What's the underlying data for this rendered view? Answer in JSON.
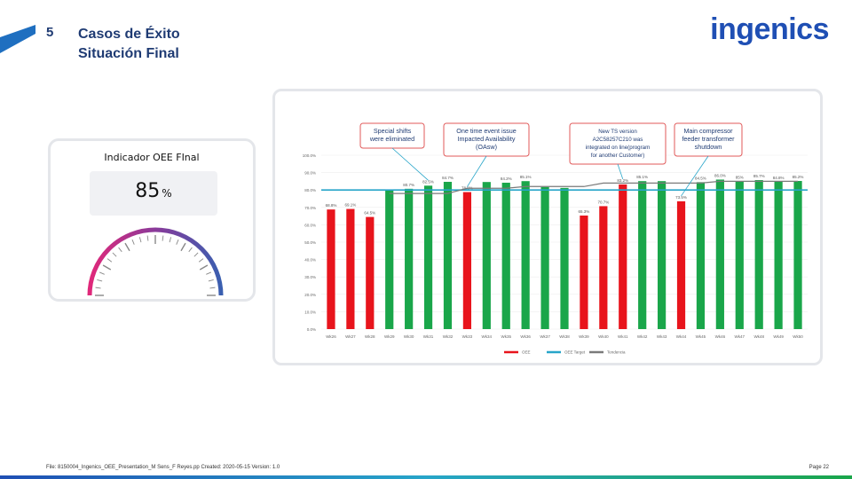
{
  "header": {
    "section_number": "5",
    "title_line1": "Casos de Éxito",
    "title_line2": "Situación Final",
    "logo": "ingenics"
  },
  "gauge": {
    "label": "Indicador OEE FInal",
    "value": "85",
    "unit": "%",
    "level_percent": 85,
    "colors": [
      "#e0287a",
      "#8a3a9a",
      "#3a5fb0"
    ]
  },
  "chart_data": {
    "type": "bar",
    "categories": [
      "Wk26",
      "Wk27",
      "Wk28",
      "Wk29",
      "Wk30",
      "Wk31",
      "Wk32",
      "Wk33",
      "Wk34",
      "Wk35",
      "Wk36",
      "Wk37",
      "Wk38",
      "Wk39",
      "Wk40",
      "Wk41",
      "Wk42",
      "Wk43",
      "Wk44",
      "Wk45",
      "Wk46",
      "Wk47",
      "Wk48",
      "Wk49",
      "Wk50"
    ],
    "values": [
      68.8,
      69.1,
      64.5,
      80.3,
      80.7,
      82.5,
      84.7,
      78.8,
      84.6,
      84.2,
      85.1,
      81.7,
      81.2,
      65.3,
      70.7,
      83.2,
      85.1,
      85.1,
      73.5,
      84.5,
      86.0,
      85.0,
      85.7,
      84.8,
      85.2
    ],
    "bar_colors": [
      "#e8141c",
      "#e8141c",
      "#e8141c",
      "#1aa64a",
      "#1aa64a",
      "#1aa64a",
      "#1aa64a",
      "#e8141c",
      "#1aa64a",
      "#1aa64a",
      "#1aa64a",
      "#1aa64a",
      "#1aa64a",
      "#e8141c",
      "#e8141c",
      "#e8141c",
      "#1aa64a",
      "#1aa64a",
      "#e8141c",
      "#1aa64a",
      "#1aa64a",
      "#1aa64a",
      "#1aa64a",
      "#1aa64a",
      "#1aa64a"
    ],
    "data_labels": [
      "68.8%",
      "69.1%",
      "64.5%",
      "",
      "80.7%",
      "82.5%",
      "84.7%",
      "78.8%",
      "",
      "84.2%",
      "85.1%",
      "",
      "",
      "65.3%",
      "70.7%",
      "83.2%",
      "85.1%",
      "",
      "73.5%",
      "84.5%",
      "86.0%",
      "85%",
      "85.7%",
      "84.8%",
      "85.2%"
    ],
    "target_line": 80,
    "target_color": "#27a5c9",
    "trend_line": [
      null,
      null,
      null,
      78,
      78,
      78,
      78,
      81,
      81,
      81,
      82,
      82,
      82,
      82,
      84,
      84,
      84,
      84,
      84,
      84,
      85,
      85,
      85,
      85,
      85
    ],
    "trend_color": "#7a7a7a",
    "y_ticks": [
      "0.0%",
      "10.0%",
      "20.0%",
      "30.0%",
      "40.0%",
      "50.0%",
      "60.0%",
      "70.0%",
      "80.0%",
      "90.0%",
      "100.0%"
    ],
    "ylim": [
      0,
      100
    ],
    "legend": [
      {
        "name": "OEE",
        "color": "#e8141c"
      },
      {
        "name": "OEE Target",
        "color": "#27a5c9"
      },
      {
        "name": "Tendencia",
        "color": "#7a7a7a"
      }
    ],
    "annotations": [
      {
        "text": [
          "Special shifts",
          "were eliminated"
        ],
        "target_index": 5
      },
      {
        "text": [
          "One time event issue",
          "Impacted Availability",
          "(OAsw)"
        ],
        "target_index": 7
      },
      {
        "text": [
          "New TS version",
          "A2C58257C210 was",
          "integrated on line(program",
          "for another Customer)"
        ],
        "target_index": 15
      },
      {
        "text": [
          "Main compressor",
          "feeder transformer",
          "shutdown"
        ],
        "target_index": 18
      }
    ]
  },
  "footer": {
    "text": "File: 8150004_Ingenics_OEE_Presentation_M Sens_F Reyes.pp Created: 2020-05-15 Version: 1.0",
    "page": "Page 22"
  }
}
